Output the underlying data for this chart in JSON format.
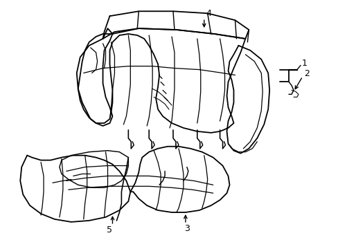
{
  "background_color": "#ffffff",
  "line_color": "#000000",
  "line_width": 1.3,
  "label_fontsize": 9,
  "xlim": [
    0,
    489
  ],
  "ylim": [
    360,
    0
  ]
}
